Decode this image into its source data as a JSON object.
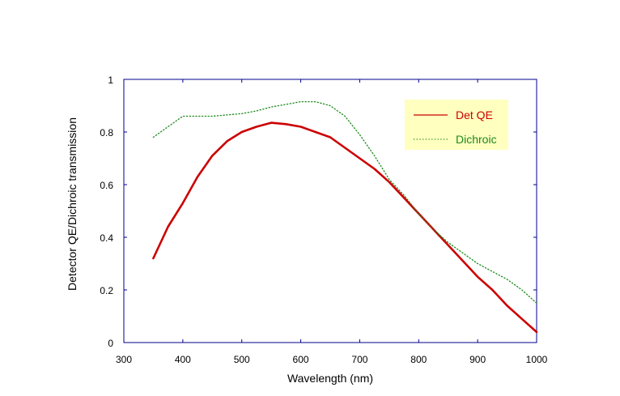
{
  "chart_data": {
    "type": "line",
    "title": "",
    "xlabel": "Wavelength (nm)",
    "ylabel": "Detector QE/Dichroic transmission",
    "xlim": [
      300,
      1000
    ],
    "ylim": [
      0,
      1
    ],
    "x_ticks": [
      300,
      400,
      500,
      600,
      700,
      800,
      900,
      1000
    ],
    "y_ticks": [
      0,
      0.2,
      0.4,
      0.6,
      0.8,
      1
    ],
    "x_tick_labels": [
      "300",
      "400",
      "500",
      "600",
      "700",
      "800",
      "900",
      "1000"
    ],
    "y_tick_labels": [
      "0",
      "0.2",
      "0.4",
      "0.6",
      "0.8",
      "1"
    ],
    "grid": false,
    "legend_position": "top-right",
    "legend_background": "#ffffc0",
    "series": [
      {
        "name": "Det QE",
        "color": "#cc0000",
        "style": "solid",
        "x": [
          350,
          375,
          400,
          425,
          450,
          475,
          500,
          525,
          550,
          575,
          600,
          625,
          650,
          675,
          700,
          725,
          750,
          775,
          800,
          825,
          850,
          875,
          900,
          925,
          950,
          975,
          1000
        ],
        "y": [
          0.32,
          0.44,
          0.53,
          0.63,
          0.71,
          0.765,
          0.8,
          0.82,
          0.835,
          0.83,
          0.82,
          0.8,
          0.78,
          0.74,
          0.7,
          0.66,
          0.61,
          0.55,
          0.49,
          0.43,
          0.37,
          0.31,
          0.25,
          0.2,
          0.14,
          0.09,
          0.04
        ]
      },
      {
        "name": "Dichroic",
        "color": "#1a8a1a",
        "style": "dotted",
        "x": [
          350,
          375,
          400,
          425,
          450,
          475,
          500,
          525,
          550,
          575,
          600,
          625,
          650,
          675,
          700,
          725,
          750,
          775,
          800,
          825,
          850,
          875,
          900,
          925,
          950,
          975,
          1000
        ],
        "y": [
          0.78,
          0.82,
          0.86,
          0.86,
          0.86,
          0.865,
          0.87,
          0.88,
          0.895,
          0.905,
          0.915,
          0.915,
          0.9,
          0.86,
          0.79,
          0.71,
          0.62,
          0.56,
          0.49,
          0.43,
          0.38,
          0.34,
          0.3,
          0.27,
          0.24,
          0.2,
          0.15
        ]
      }
    ]
  }
}
